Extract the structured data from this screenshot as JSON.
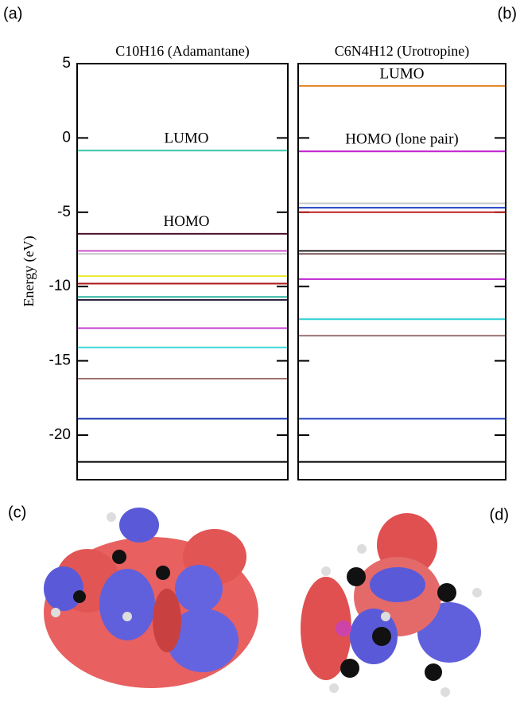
{
  "panel_labels": [
    "(a)",
    "(b)",
    "(c)",
    "(d)"
  ],
  "chart_data": [
    {
      "type": "levels",
      "title": "C10H16 (Adamantane)",
      "ylabel": "Energy (eV)",
      "ylim": [
        -23,
        5
      ],
      "yticks": [
        5,
        0,
        -5,
        -10,
        -15,
        -20
      ],
      "ytick_labels": true,
      "values": [
        -0.85,
        -6.45,
        -7.6,
        -7.8,
        -9.3,
        -9.8,
        -10.7,
        -10.9,
        -12.8,
        -14.1,
        -16.2,
        -18.9,
        -21.8
      ],
      "colors": [
        "#3cc8a8",
        "#4a1030",
        "#cc55cc",
        "#c8c8c8",
        "#e8e830",
        "#b01818",
        "#30b0a0",
        "#302040",
        "#c040d0",
        "#40d8d8",
        "#a07070",
        "#1030b0",
        "#000000"
      ],
      "annotations": [
        "LUMO",
        "HOMO"
      ]
    },
    {
      "type": "levels",
      "title": "C6N4H12 (Urotropine)",
      "ylim": [
        -23,
        5
      ],
      "yticks": [
        5,
        0,
        -5,
        -10,
        -15,
        -20
      ],
      "ytick_labels": false,
      "values": [
        3.5,
        -0.9,
        -4.4,
        -4.7,
        -5.0,
        -7.6,
        -7.8,
        -9.5,
        -12.2,
        -13.3,
        -18.9,
        -21.8
      ],
      "colors": [
        "#e88830",
        "#c020d0",
        "#c8c8c8",
        "#2040c0",
        "#c02020",
        "#202020",
        "#806060",
        "#c020d0",
        "#30d0d8",
        "#a07878",
        "#2040c0",
        "#000000"
      ],
      "annotations": [
        "LUMO",
        "HOMO (lone pair)"
      ]
    }
  ]
}
